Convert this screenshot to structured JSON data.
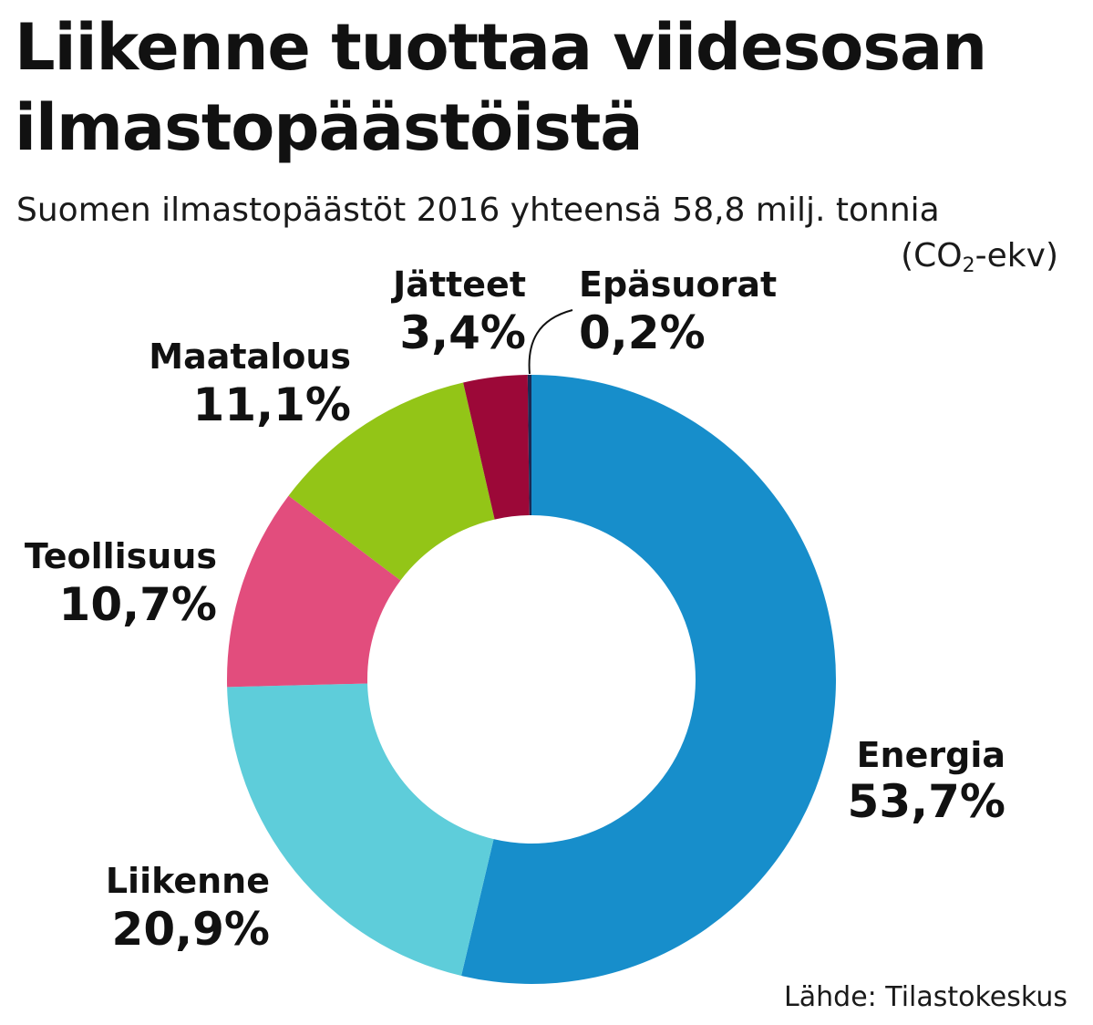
{
  "title": "Liikenne tuottaa viidesosan ilmastopäästöistä",
  "subtitle": "Suomen ilmastopäästöt 2016 yhteensä 58,8 milj. tonnia",
  "unit": {
    "prefix": "(CO",
    "sub": "2",
    "suffix": "-ekv)"
  },
  "source": "Lähde: Tilastokeskus",
  "chart_data": {
    "type": "pie",
    "donut": true,
    "categories": [
      "Energia",
      "Liikenne",
      "Teollisuus",
      "Maatalous",
      "Jätteet",
      "Epäsuorat"
    ],
    "values": [
      53.7,
      20.9,
      10.7,
      11.1,
      3.4,
      0.2
    ],
    "value_labels": [
      "53,7%",
      "20,9%",
      "10,7%",
      "11,1%",
      "3,4%",
      "0,2%"
    ],
    "colors": [
      "#178ecb",
      "#5ecdda",
      "#e24d7d",
      "#93c517",
      "#9c0838",
      "#1a2a55"
    ],
    "title": "Liikenne tuottaa viidesosan ilmastopäästöistä",
    "subtitle": "Suomen ilmastopäästöt 2016 yhteensä 58,8 milj. tonnia",
    "start": "12 o'clock",
    "direction": "clockwise"
  }
}
